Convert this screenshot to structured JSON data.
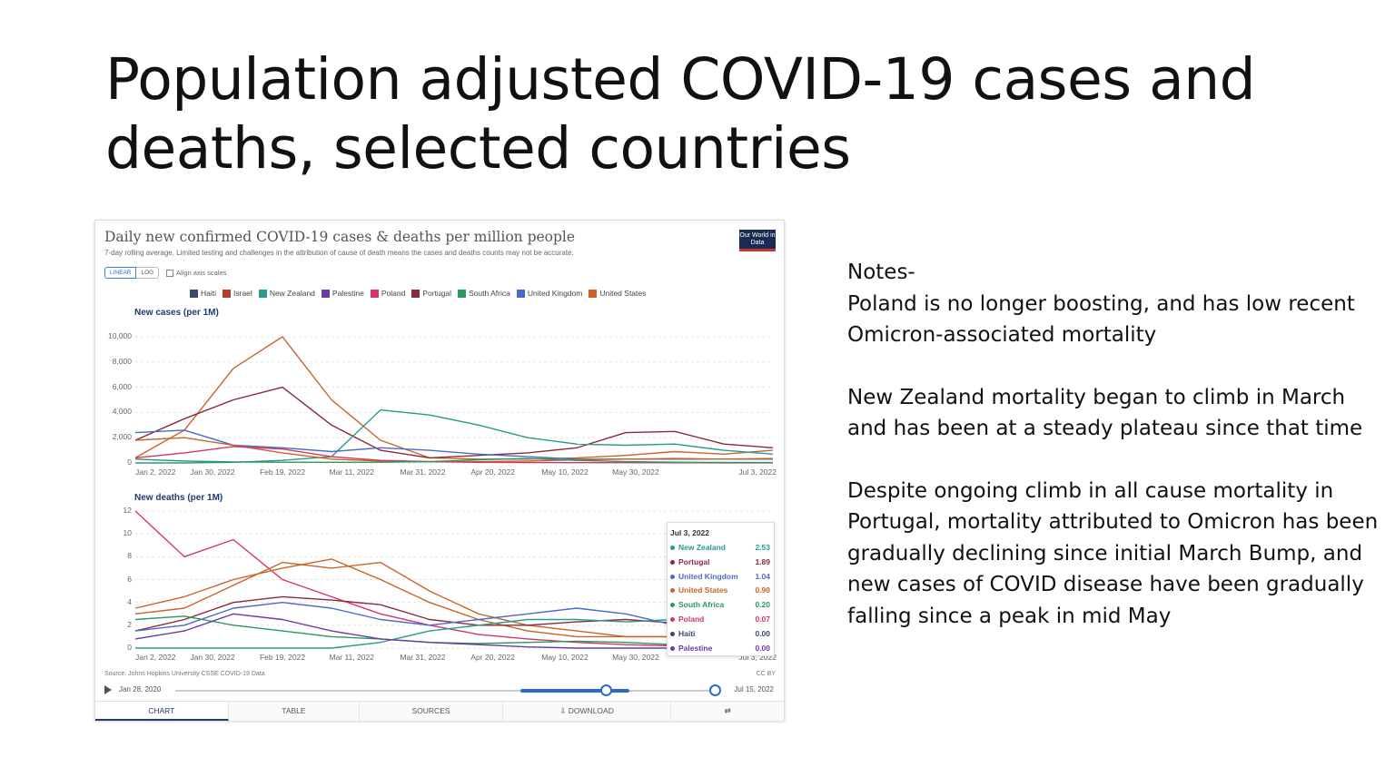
{
  "slide": {
    "title_line1": "Population adjusted COVID-19 cases and",
    "title_line2": "deaths, selected countries",
    "notes": [
      "Notes-",
      "Poland is no longer boosting, and has low recent Omicron-associated mortality",
      "New Zealand mortality began to climb in March and has been at a steady plateau since that time",
      "Despite ongoing climb in all cause mortality in Portugal, mortality attributed to Omicron has been gradually declining since initial March Bump, and new cases of COVID disease have been gradually falling since a peak in mid May"
    ]
  },
  "chart_card": {
    "title": "Daily new confirmed COVID-19 cases & deaths per million people",
    "subtitle": "7-day rolling average. Limited testing and challenges in the attribution of cause of death means the cases and deaths counts may not be accurate.",
    "logo": "Our World in Data",
    "scale_linear": "LINEAR",
    "scale_log": "LOG",
    "align_axis": "Align axis scales",
    "source": "Source: Johns Hopkins University CSSE COVID-19 Data",
    "license": "CC BY",
    "timeline_start": "Jan 28, 2020",
    "timeline_end": "Jul 15, 2022",
    "tabs": [
      "CHART",
      "TABLE",
      "SOURCES",
      "⇩ DOWNLOAD",
      "⇄"
    ]
  },
  "legend": [
    {
      "name": "Haiti",
      "color": "#3a4a6e"
    },
    {
      "name": "Israel",
      "color": "#b83a28"
    },
    {
      "name": "New Zealand",
      "color": "#2a9a8a"
    },
    {
      "name": "Palestine",
      "color": "#6a3aa8"
    },
    {
      "name": "Poland",
      "color": "#d6336c"
    },
    {
      "name": "Portugal",
      "color": "#8a2a3a"
    },
    {
      "name": "South Africa",
      "color": "#2a9a5a"
    },
    {
      "name": "United Kingdom",
      "color": "#4a6ac8"
    },
    {
      "name": "United States",
      "color": "#c8642a"
    }
  ],
  "tooltip": {
    "date": "Jul 3, 2022",
    "rows": [
      {
        "name": "New Zealand",
        "value": "2.53",
        "color": "#2a9a8a"
      },
      {
        "name": "Portugal",
        "value": "1.89",
        "color": "#8a2a3a"
      },
      {
        "name": "United Kingdom",
        "value": "1.04",
        "color": "#4a6ac8"
      },
      {
        "name": "United States",
        "value": "0.90",
        "color": "#c8642a"
      },
      {
        "name": "South Africa",
        "value": "0.20",
        "color": "#2a9a5a"
      },
      {
        "name": "Poland",
        "value": "0.07",
        "color": "#d6336c"
      },
      {
        "name": "Haiti",
        "value": "0.00",
        "color": "#3a4a6e"
      },
      {
        "name": "Palestine",
        "value": "0.00",
        "color": "#6a3aa8"
      }
    ]
  },
  "chart_data": [
    {
      "type": "line",
      "title": "New cases (per 1M)",
      "ylim": [
        0,
        10000
      ],
      "yticks": [
        "10,000",
        "8,000",
        "6,000",
        "4,000",
        "2,000",
        "0"
      ],
      "xticks": [
        "Jan 2, 2022",
        "Jan 30, 2022",
        "Feb 19, 2022",
        "Mar 11, 2022",
        "Mar 31, 2022",
        "Apr 20, 2022",
        "May 10, 2022",
        "May 30, 2022",
        "Jul 3, 2022"
      ],
      "x_days": [
        0,
        14,
        28,
        42,
        56,
        70,
        84,
        98,
        112,
        126,
        140,
        154,
        168,
        182
      ],
      "series": [
        {
          "name": "Israel",
          "color": "#c8642a",
          "values": [
            400,
            2600,
            7500,
            10000,
            5000,
            1800,
            400,
            300,
            300,
            400,
            600,
            900,
            700,
            1000
          ]
        },
        {
          "name": "Portugal",
          "color": "#8a2a3a",
          "values": [
            1800,
            3500,
            5000,
            6000,
            3000,
            1000,
            400,
            600,
            800,
            1200,
            2400,
            2500,
            1500,
            1200
          ]
        },
        {
          "name": "New Zealand",
          "color": "#2a9a8a",
          "values": [
            0,
            0,
            50,
            200,
            500,
            4200,
            3800,
            3000,
            2000,
            1500,
            1400,
            1500,
            1000,
            700
          ]
        },
        {
          "name": "United Kingdom",
          "color": "#4a6ac8",
          "values": [
            2400,
            2600,
            1400,
            1200,
            900,
            1200,
            1000,
            700,
            500,
            300,
            300,
            300,
            300,
            300
          ]
        },
        {
          "name": "United States",
          "color": "#c8642a",
          "values": [
            1800,
            2000,
            1400,
            800,
            300,
            150,
            100,
            100,
            150,
            250,
            300,
            350,
            300,
            350
          ]
        },
        {
          "name": "Poland",
          "color": "#d6336c",
          "values": [
            400,
            800,
            1300,
            1100,
            500,
            200,
            100,
            50,
            30,
            20,
            20,
            15,
            10,
            10
          ]
        },
        {
          "name": "South Africa",
          "color": "#2a9a5a",
          "values": [
            300,
            150,
            80,
            60,
            50,
            60,
            100,
            250,
            350,
            200,
            100,
            60,
            40,
            30
          ]
        }
      ]
    },
    {
      "type": "line",
      "title": "New deaths (per 1M)",
      "ylim": [
        0,
        12
      ],
      "yticks": [
        "12",
        "10",
        "8",
        "6",
        "4",
        "2",
        "0"
      ],
      "xticks": [
        "Jan 2, 2022",
        "Jan 30, 2022",
        "Feb 19, 2022",
        "Mar 11, 2022",
        "Mar 31, 2022",
        "Apr 20, 2022",
        "May 10, 2022",
        "May 30, 2022",
        "Jul 3, 2022"
      ],
      "x_days": [
        0,
        14,
        28,
        42,
        56,
        70,
        84,
        98,
        112,
        126,
        140,
        154,
        168,
        182
      ],
      "series": [
        {
          "name": "Poland",
          "color": "#d6336c",
          "values": [
            12,
            8,
            9.5,
            6,
            4.5,
            3,
            2,
            1.2,
            0.8,
            0.5,
            0.3,
            0.2,
            0.1,
            0.07
          ]
        },
        {
          "name": "Israel",
          "color": "#c8642a",
          "values": [
            3,
            3.5,
            5.5,
            7.5,
            7,
            7.5,
            5,
            3,
            2,
            1.5,
            1,
            1,
            0.8,
            0.9
          ]
        },
        {
          "name": "United States",
          "color": "#c8642a",
          "values": [
            3.5,
            4.5,
            6,
            7,
            7.8,
            6,
            4,
            2.5,
            1.5,
            1,
            1,
            1,
            0.9,
            0.9
          ]
        },
        {
          "name": "Portugal",
          "color": "#8a2a3a",
          "values": [
            1.5,
            2.5,
            4,
            4.5,
            4.2,
            3.8,
            2.5,
            2,
            2,
            2.3,
            2.5,
            2.2,
            2,
            1.89
          ]
        },
        {
          "name": "United Kingdom",
          "color": "#4a6ac8",
          "values": [
            1.5,
            2,
            3.5,
            4,
            3.5,
            2.5,
            2,
            2.5,
            3,
            3.5,
            3,
            2,
            1.2,
            1.04
          ]
        },
        {
          "name": "New Zealand",
          "color": "#2a9a8a",
          "values": [
            0,
            0,
            0,
            0,
            0,
            0.5,
            1.5,
            2,
            2.5,
            2.5,
            2.3,
            2.5,
            2.6,
            2.53
          ]
        },
        {
          "name": "South Africa",
          "color": "#2a9a5a",
          "values": [
            2.5,
            2.8,
            2,
            1.5,
            1,
            0.8,
            0.5,
            0.4,
            0.5,
            0.6,
            0.5,
            0.3,
            0.2,
            0.2
          ]
        },
        {
          "name": "Palestine",
          "color": "#6a3aa8",
          "values": [
            0.8,
            1.5,
            3,
            2.5,
            1.5,
            0.8,
            0.5,
            0.3,
            0.1,
            0,
            0,
            0,
            0,
            0
          ]
        }
      ]
    }
  ]
}
